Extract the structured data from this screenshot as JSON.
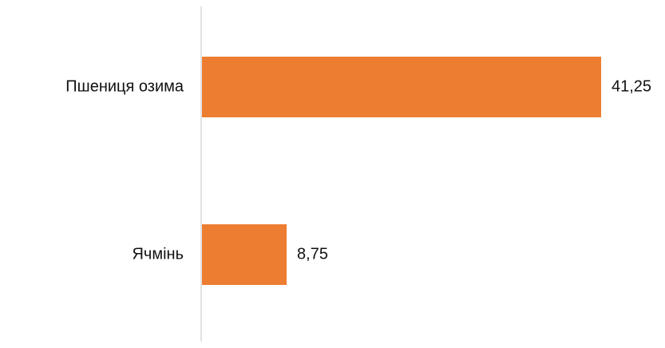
{
  "chart_data": {
    "type": "bar",
    "orientation": "horizontal",
    "categories": [
      "Пшениця озима",
      "Ячмінь"
    ],
    "values": [
      41.25,
      8.75
    ],
    "value_labels": [
      "41,25",
      "8,75"
    ],
    "title": "",
    "xlabel": "",
    "ylabel": "",
    "xlim": [
      0,
      41.25
    ],
    "grid": false,
    "legend": "none",
    "bar_color": "#ED7D31",
    "axis_color": "#D9D9D9"
  }
}
